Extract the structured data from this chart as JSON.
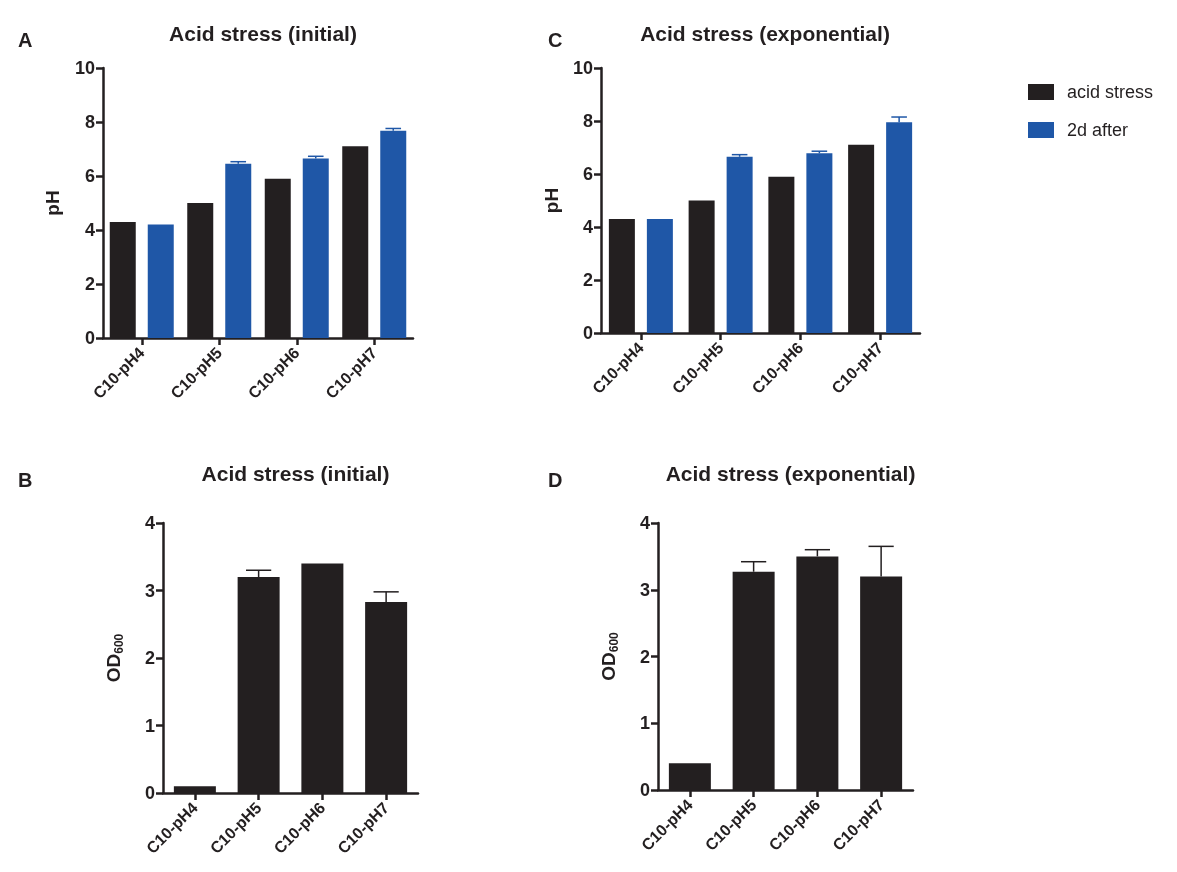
{
  "chart_data": [
    {
      "type": "bar",
      "title": "Acid stress (initial)",
      "ylabel": "pH",
      "annotations": [
        "A"
      ],
      "categories": [
        "C10-pH4",
        "C10-pH5",
        "C10-pH6",
        "C10-pH7"
      ],
      "ylim": [
        0,
        10
      ],
      "yticks": [
        0,
        2,
        4,
        6,
        8,
        10
      ],
      "grid": false,
      "legend": false,
      "series": [
        {
          "color": "#231f20",
          "values": [
            4.3,
            5.0,
            5.9,
            7.1
          ]
        },
        {
          "color": "#1f57a7",
          "values": [
            4.2,
            6.45,
            6.65,
            7.68
          ],
          "errors": [
            null,
            0.08,
            0.08,
            0.08
          ]
        }
      ]
    },
    {
      "type": "bar",
      "title": "Acid stress (exponential)",
      "ylabel": "pH",
      "annotations": [
        "C"
      ],
      "categories": [
        "C10-pH4",
        "C10-pH5",
        "C10-pH6",
        "C10-pH7"
      ],
      "ylim": [
        0,
        10
      ],
      "yticks": [
        0,
        2,
        4,
        6,
        8,
        10
      ],
      "grid": false,
      "legend": "right",
      "series": [
        {
          "name": "acid stress",
          "color": "#231f20",
          "values": [
            4.3,
            5.0,
            5.9,
            7.1
          ]
        },
        {
          "name": "2d after",
          "color": "#1f57a7",
          "values": [
            4.3,
            6.65,
            6.78,
            7.95
          ],
          "errors": [
            null,
            0.08,
            0.08,
            0.2
          ]
        }
      ]
    },
    {
      "type": "bar",
      "title": "Acid stress (initial)",
      "ylabel": "OD$_{600}$",
      "annotations": [
        "B"
      ],
      "categories": [
        "C10-pH4",
        "C10-pH5",
        "C10-pH6",
        "C10-pH7"
      ],
      "ylim": [
        0,
        4
      ],
      "yticks": [
        0,
        1,
        2,
        3,
        4
      ],
      "grid": false,
      "legend": false,
      "series": [
        {
          "color": "#231f20",
          "values": [
            0.1,
            3.2,
            3.4,
            2.83
          ],
          "errors": [
            null,
            0.1,
            null,
            0.15
          ]
        }
      ]
    },
    {
      "type": "bar",
      "title": "Acid stress (exponential)",
      "ylabel": "OD$_{600}$",
      "annotations": [
        "D"
      ],
      "categories": [
        "C10-pH4",
        "C10-pH5",
        "C10-pH6",
        "C10-pH7"
      ],
      "ylim": [
        0,
        4
      ],
      "yticks": [
        0,
        1,
        2,
        3,
        4
      ],
      "grid": false,
      "legend": false,
      "series": [
        {
          "color": "#231f20",
          "values": [
            0.4,
            3.27,
            3.5,
            3.2
          ],
          "errors": [
            null,
            0.15,
            0.1,
            0.45
          ]
        }
      ]
    }
  ]
}
